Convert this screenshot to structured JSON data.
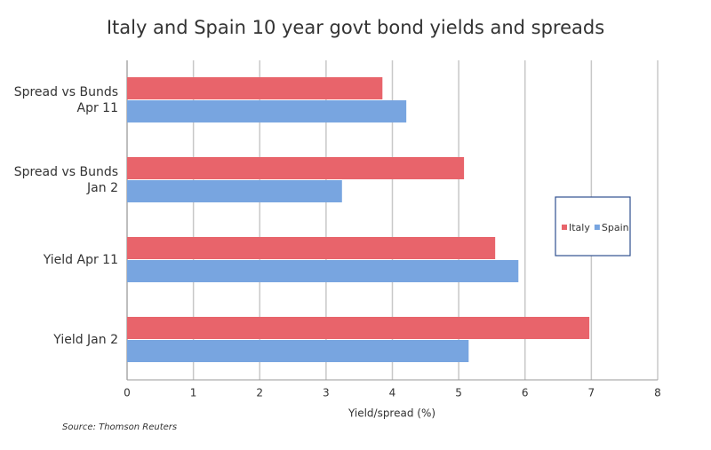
{
  "chart_data": {
    "type": "hbar",
    "title": "Italy and Spain 10 year govt bond yields and spreads",
    "categories": [
      "Spread vs Bunds Apr 11",
      "Spread vs Bunds Jan 2",
      "Yield Apr 11",
      "Yield Jan 2"
    ],
    "series": [
      {
        "name": "Italy",
        "color": "#e8646b",
        "values": [
          3.85,
          5.08,
          5.55,
          6.97
        ]
      },
      {
        "name": "Spain",
        "color": "#78a5e0",
        "values": [
          4.21,
          3.24,
          5.9,
          5.15
        ]
      }
    ],
    "xlim": [
      0,
      8
    ],
    "xticks": [
      0,
      1,
      2,
      3,
      4,
      5,
      6,
      7,
      8
    ],
    "grid": true,
    "x_label": "Yield/spread (%)",
    "source": "Source: Thomson Reuters",
    "legend": "right"
  }
}
